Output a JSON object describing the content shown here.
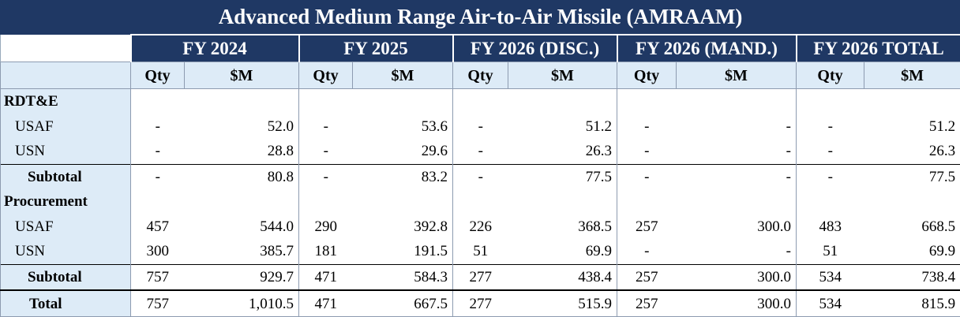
{
  "title": "Advanced Medium Range Air-to-Air Missile (AMRAAM)",
  "fiscal_years": [
    "FY 2024",
    "FY 2025",
    "FY 2026 (DISC.)",
    "FY 2026 (MAND.)",
    "FY 2026 TOTAL"
  ],
  "col_headers": {
    "qty": "Qty",
    "dollars": "$M"
  },
  "sections": {
    "rdte": "RDT&E",
    "procurement": "Procurement"
  },
  "rows": [
    {
      "label": "USAF",
      "values": [
        "-",
        "52.0",
        "-",
        "53.6",
        "-",
        "51.2",
        "-",
        "-",
        "-",
        "51.2"
      ]
    },
    {
      "label": "USN",
      "values": [
        "-",
        "28.8",
        "-",
        "29.6",
        "-",
        "26.3",
        "-",
        "-",
        "-",
        "26.3"
      ]
    },
    {
      "label": "Subtotal",
      "values": [
        "-",
        "80.8",
        "-",
        "83.2",
        "-",
        "77.5",
        "-",
        "-",
        "-",
        "77.5"
      ]
    },
    {
      "label": "USAF",
      "values": [
        "457",
        "544.0",
        "290",
        "392.8",
        "226",
        "368.5",
        "257",
        "300.0",
        "483",
        "668.5"
      ]
    },
    {
      "label": "USN",
      "values": [
        "300",
        "385.7",
        "181",
        "191.5",
        "51",
        "69.9",
        "-",
        "-",
        "51",
        "69.9"
      ]
    },
    {
      "label": "Subtotal",
      "values": [
        "757",
        "929.7",
        "471",
        "584.3",
        "277",
        "438.4",
        "257",
        "300.0",
        "534",
        "738.4"
      ]
    },
    {
      "label": "Total",
      "values": [
        "757",
        "1,010.5",
        "471",
        "667.5",
        "277",
        "515.9",
        "257",
        "300.0",
        "534",
        "815.9"
      ]
    }
  ]
}
